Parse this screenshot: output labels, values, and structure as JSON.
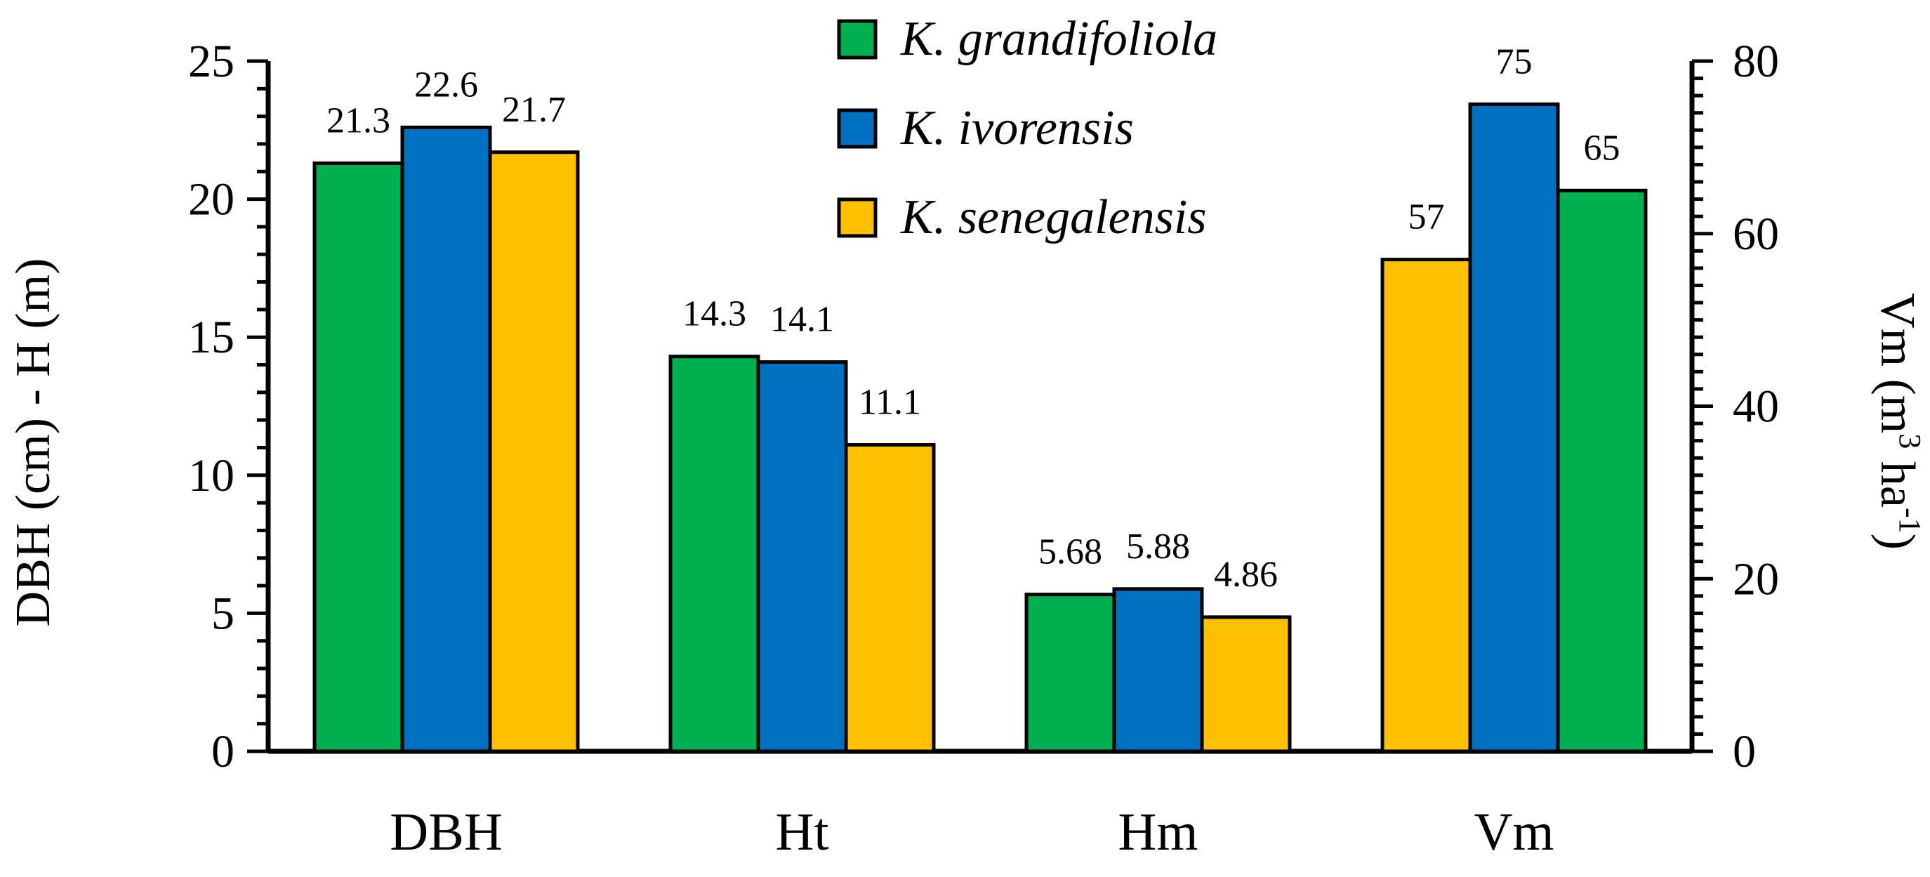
{
  "chart_data": {
    "type": "bar",
    "categories": [
      "DBH",
      "Ht",
      "Hm",
      "Vm"
    ],
    "series": [
      {
        "name": "K. grandifoliola",
        "color": "#00B050",
        "values": [
          21.3,
          14.3,
          5.68,
          65
        ]
      },
      {
        "name": "K. ivorensis",
        "color": "#0070C0",
        "values": [
          22.6,
          14.1,
          5.88,
          75
        ]
      },
      {
        "name": "K. senegalensis",
        "color": "#FFC000",
        "values": [
          21.7,
          11.1,
          4.86,
          57
        ]
      }
    ],
    "bar_order": [
      [
        "K. grandifoliola",
        "K. ivorensis",
        "K. senegalensis"
      ],
      [
        "K. grandifoliola",
        "K. ivorensis",
        "K. senegalensis"
      ],
      [
        "K. grandifoliola",
        "K. ivorensis",
        "K. senegalensis"
      ],
      [
        "K. senegalensis",
        "K. ivorensis",
        "K. grandifoliola"
      ]
    ],
    "data_labels": [
      [
        "21.3",
        "22.6",
        "21.7"
      ],
      [
        "14.3",
        "14.1",
        "11.1"
      ],
      [
        "5.68",
        "5.88",
        "4.86"
      ],
      [
        "57",
        "75",
        "65"
      ]
    ],
    "secondary_axis_categories": [
      "Vm"
    ],
    "ylabel": "DBH (cm) - H (m)",
    "y2label_main": "Vm (m",
    "y2label_sup1": "3",
    "y2label_mid": " ha",
    "y2label_sup2": "-1",
    "y2label_end": ")",
    "ylim": [
      0,
      25
    ],
    "y_ticks": [
      0,
      5,
      10,
      15,
      20,
      25
    ],
    "y_tick_labels": [
      "0",
      "5",
      "10",
      "15",
      "20",
      "25"
    ],
    "y2lim": [
      0,
      80
    ],
    "y2_ticks": [
      0,
      20,
      40,
      60,
      80
    ],
    "y2_tick_labels": [
      "0",
      "20",
      "40",
      "60",
      "80"
    ],
    "legend_position": "top-center",
    "grid": false
  }
}
